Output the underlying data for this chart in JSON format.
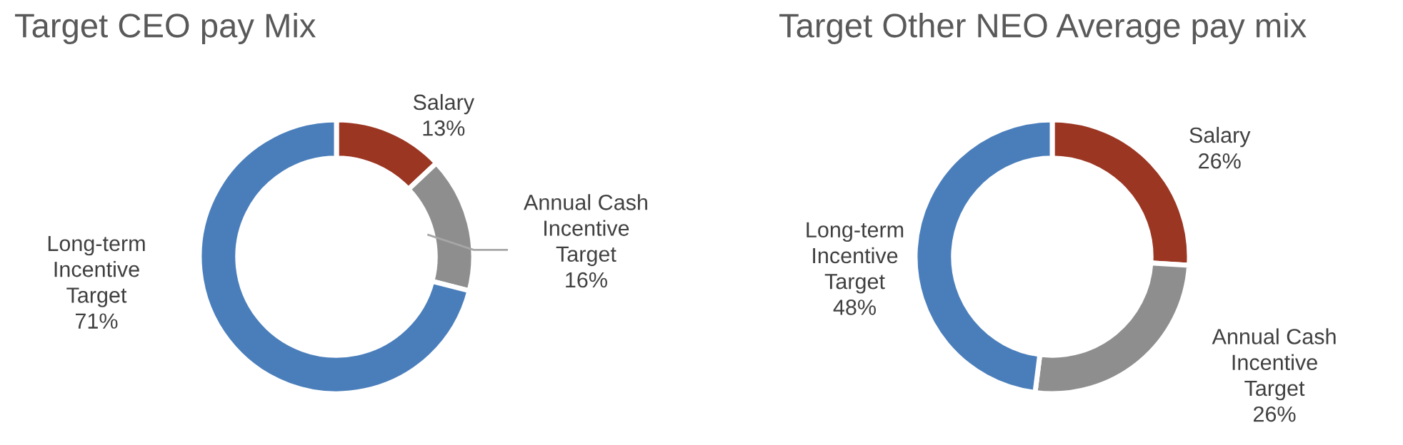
{
  "chart_data": [
    {
      "type": "donut",
      "title": "Target CEO pay Mix",
      "categories": [
        "Salary",
        "Annual Cash\nIncentive\nTarget",
        "Long-term\nIncentive\nTarget"
      ],
      "values": [
        13,
        16,
        71
      ],
      "value_labels": [
        "13%",
        "16%",
        "71%"
      ],
      "colors": [
        "#9b3622",
        "#8e8e8e",
        "#4a7ebb"
      ]
    },
    {
      "type": "donut",
      "title": "Target Other NEO Average pay mix",
      "categories": [
        "Salary",
        "Annual Cash\nIncentive\nTarget",
        "Long-term\nIncentive\nTarget"
      ],
      "values": [
        26,
        26,
        48
      ],
      "value_labels": [
        "26%",
        "26%",
        "48%"
      ],
      "colors": [
        "#9b3622",
        "#8e8e8e",
        "#4a7ebb"
      ]
    }
  ]
}
